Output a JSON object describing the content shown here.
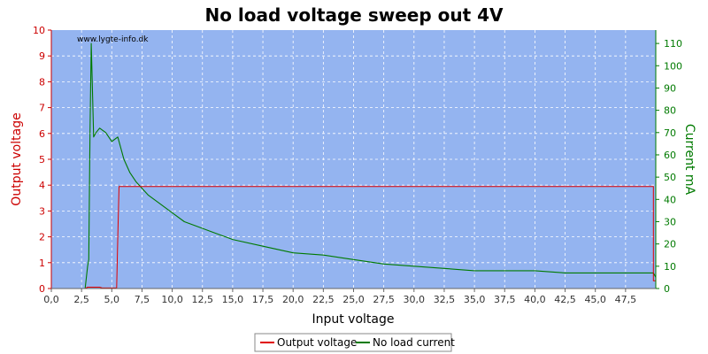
{
  "chart_data": {
    "type": "line",
    "title": "No load voltage sweep out 4V",
    "watermark": "www.lygte-info.dk",
    "xlabel": "Input voltage",
    "ylabel_left": "Output voltage",
    "ylabel_right": "Current mA",
    "xlim": [
      0,
      50
    ],
    "ylim_left": [
      0,
      10
    ],
    "ylim_right": [
      0,
      116
    ],
    "x_ticks": [
      "0,0",
      "2,5",
      "5,0",
      "7,5",
      "10,0",
      "12,5",
      "15,0",
      "17,5",
      "20,0",
      "22,5",
      "25,0",
      "27,5",
      "30,0",
      "32,5",
      "35,0",
      "37,5",
      "40,0",
      "42,5",
      "45,0",
      "47,5"
    ],
    "y_left_ticks": [
      "0",
      "1",
      "2",
      "3",
      "4",
      "5",
      "6",
      "7",
      "8",
      "9",
      "10"
    ],
    "y_right_ticks": [
      "0",
      "10",
      "20",
      "30",
      "40",
      "50",
      "60",
      "70",
      "80",
      "90",
      "100",
      "110"
    ],
    "grid": true,
    "legend_position": "bottom-center",
    "colors": {
      "plot_bg": "#94b4f0",
      "output_voltage": "#e00000",
      "no_load_current": "#007a00",
      "left_axis": "#cc0000",
      "right_axis": "#007a00"
    },
    "series": [
      {
        "name": "Output voltage",
        "axis": "left",
        "x": [
          2.8,
          3.0,
          3.5,
          4.0,
          4.2,
          4.5,
          5.0,
          5.4,
          5.5,
          5.6,
          49.8,
          49.8,
          50.0
        ],
        "values": [
          0.0,
          0.05,
          0.05,
          0.05,
          0.02,
          0.02,
          0.02,
          0.02,
          2.0,
          3.95,
          3.95,
          0.3,
          0.3
        ]
      },
      {
        "name": "No load current",
        "axis": "right",
        "x": [
          2.8,
          3.0,
          3.1,
          3.2,
          3.3,
          3.4,
          3.5,
          3.7,
          4.0,
          4.5,
          5.0,
          5.5,
          6.0,
          6.5,
          7.0,
          7.5,
          8.0,
          9.0,
          10.0,
          11.0,
          12.0,
          13.0,
          14.0,
          15.0,
          17.5,
          20.0,
          22.5,
          25.0,
          27.5,
          30.0,
          32.5,
          35.0,
          37.5,
          40.0,
          42.5,
          45.0,
          47.5,
          49.8,
          50.0
        ],
        "values": [
          0,
          10,
          13,
          70,
          110,
          90,
          68,
          70,
          72,
          70,
          66,
          68,
          58,
          52,
          48,
          45,
          42,
          38,
          34,
          30,
          28,
          26,
          24,
          22,
          19,
          16,
          15,
          13,
          11,
          10,
          9,
          8,
          8,
          8,
          7,
          7,
          7,
          7,
          5
        ]
      }
    ]
  }
}
